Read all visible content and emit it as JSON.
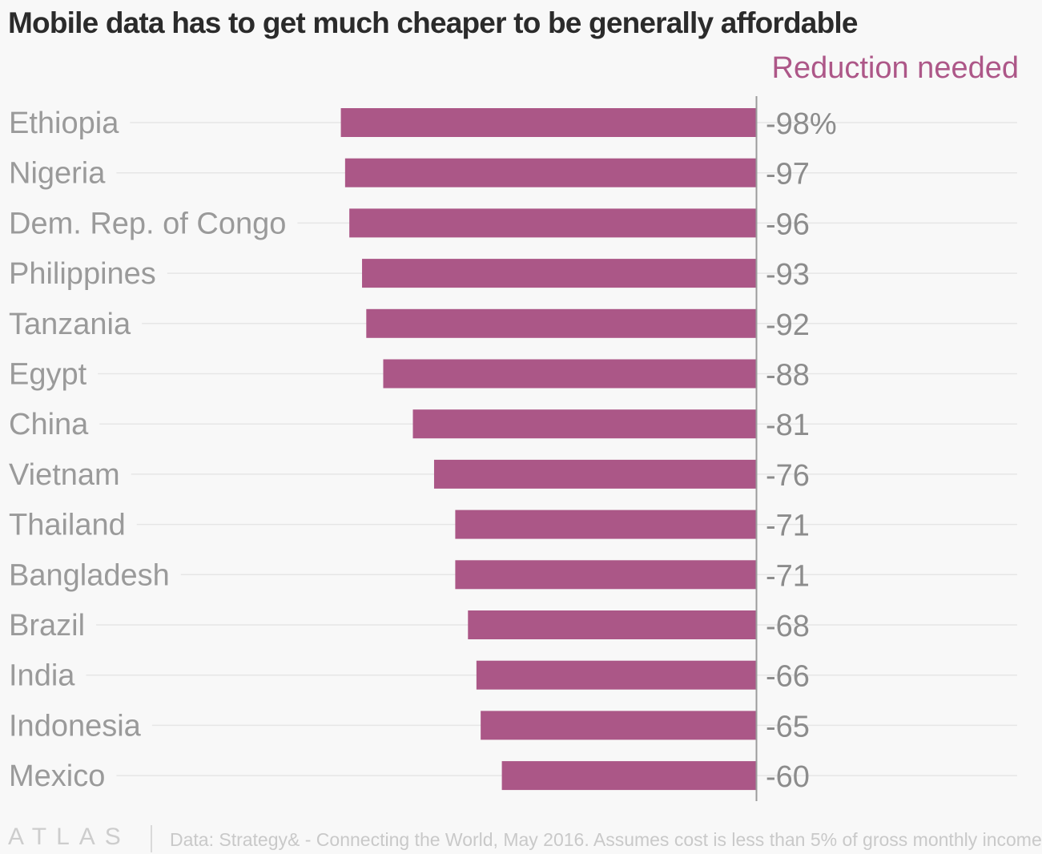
{
  "title": "Mobile data has to get much cheaper to be generally affordable",
  "legend_label": "Reduction needed",
  "footer": {
    "brand": "ATLAS",
    "source": "Data: Strategy& - Connecting the World, May 2016. Assumes cost is less than 5% of gross monthly income"
  },
  "colors": {
    "bar": "#ab5787",
    "category_label": "#9a9a9a",
    "value_label": "#8c8c8c",
    "gridline": "#e6e6e6",
    "axis": "#9b9b9b"
  },
  "chart_data": {
    "type": "bar",
    "orientation": "horizontal",
    "title": "Mobile data has to get much cheaper to be generally affordable",
    "series": [
      {
        "name": "Reduction needed",
        "values": [
          -98,
          -97,
          -96,
          -93,
          -92,
          -88,
          -81,
          -76,
          -71,
          -71,
          -68,
          -66,
          -65,
          -60
        ]
      }
    ],
    "categories": [
      "Ethiopia",
      "Nigeria",
      "Dem. Rep. of Congo",
      "Philippines",
      "Tanzania",
      "Egypt",
      "China",
      "Vietnam",
      "Thailand",
      "Bangladesh",
      "Brazil",
      "India",
      "Indonesia",
      "Mexico"
    ],
    "value_labels": [
      "-98%",
      "-97",
      "-96",
      "-93",
      "-92",
      "-88",
      "-81",
      "-76",
      "-71",
      "-71",
      "-68",
      "-66",
      "-65",
      "-60"
    ],
    "unit": "%",
    "xlim": [
      -100,
      0
    ],
    "grid": true,
    "legend_position": "top-right"
  }
}
